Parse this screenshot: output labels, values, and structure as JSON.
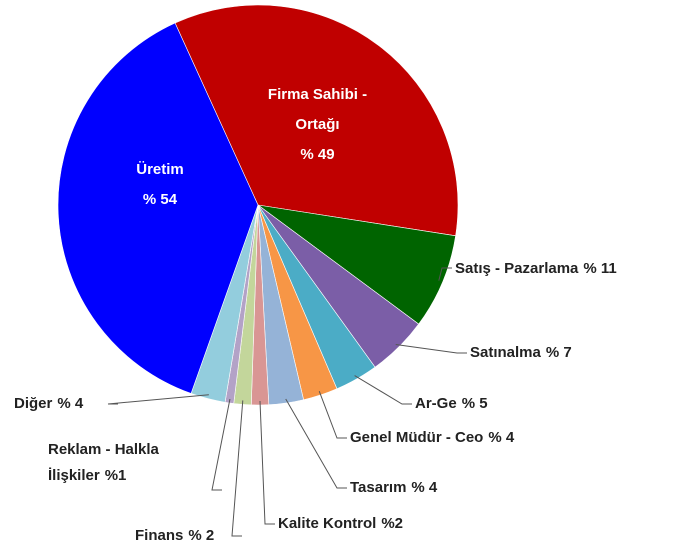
{
  "chart_data": {
    "type": "pie",
    "categories": [
      "Firma Sahibi - Ortağı",
      "Satış - Pazarlama",
      "Satınalma",
      "Ar-Ge",
      "Genel Müdür - Ceo",
      "Tasarım",
      "Kalite Kontrol",
      "Finans",
      "Reklam - Halkla İlişkiler",
      "Diğer",
      "Üretim"
    ],
    "values": [
      49,
      11,
      7,
      5,
      4,
      4,
      2,
      2,
      1,
      4,
      54
    ],
    "value_labels": [
      "% 49",
      "% 11",
      "% 7",
      "% 5",
      "% 4",
      "% 4",
      "%2",
      "% 2",
      "%1",
      "% 4",
      "% 54"
    ],
    "colors": [
      "#c00000",
      "#006400",
      "#7b5ea7",
      "#4bacc6",
      "#f79646",
      "#95b3d7",
      "#d99694",
      "#c3d69b",
      "#b3a2c7",
      "#93cddd",
      "#0000ff"
    ]
  }
}
